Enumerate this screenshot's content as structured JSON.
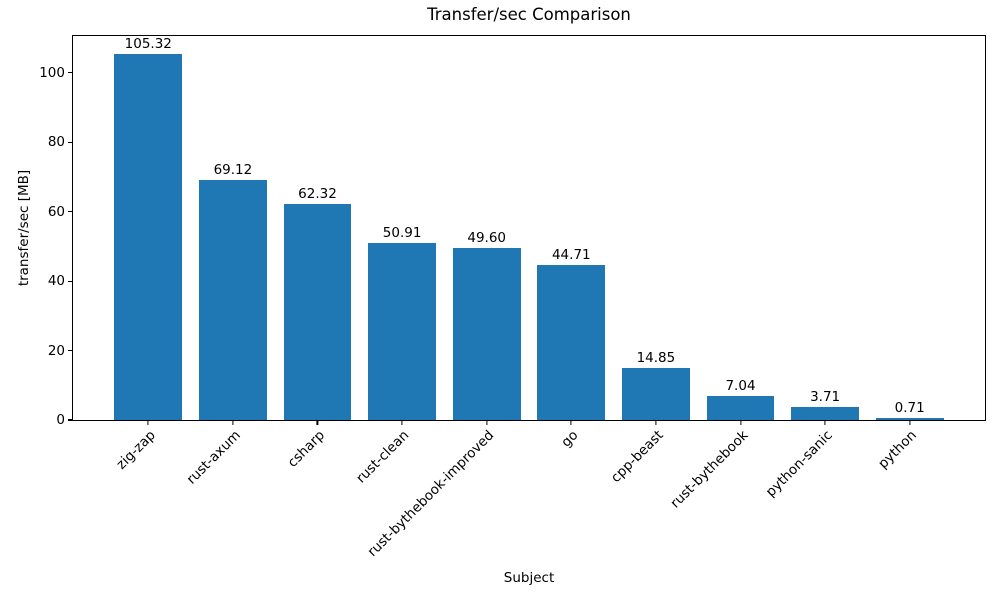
{
  "chart_data": {
    "type": "bar",
    "title": "Transfer/sec Comparison",
    "xlabel": "Subject",
    "ylabel": "transfer/sec [MB]",
    "categories": [
      "zig-zap",
      "rust-axum",
      "csharp",
      "rust-clean",
      "rust-bythebook-improved",
      "go",
      "cpp-beast",
      "rust-bythebook",
      "python-sanic",
      "python"
    ],
    "values": [
      105.32,
      69.12,
      62.32,
      50.91,
      49.6,
      44.71,
      14.85,
      7.04,
      3.71,
      0.71
    ],
    "value_labels": [
      "105.32",
      "69.12",
      "62.32",
      "50.91",
      "49.60",
      "44.71",
      "14.85",
      "7.04",
      "3.71",
      "0.71"
    ],
    "yticks": [
      0,
      20,
      40,
      60,
      80,
      100
    ],
    "ytick_labels": [
      "0",
      "20",
      "40",
      "60",
      "80",
      "100"
    ],
    "ylim": [
      0,
      110.586
    ],
    "xlim": [
      -0.89,
      9.89
    ],
    "bar_width_units": 0.8,
    "bar_color": "#1f77b4",
    "grid": false,
    "legend_position": "none",
    "x_tick_rotation_deg": 45
  }
}
